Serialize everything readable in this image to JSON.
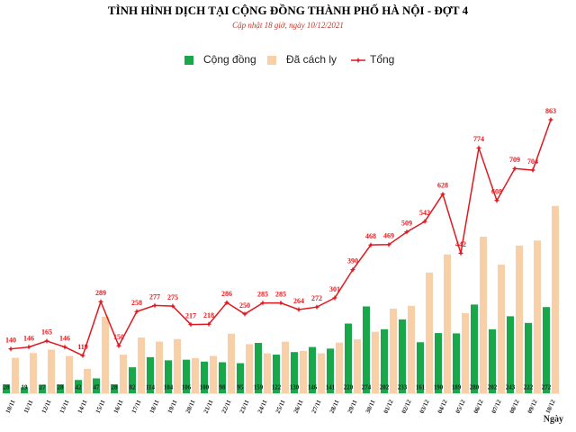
{
  "chart_data": {
    "type": "bar",
    "title": "TÌNH HÌNH DỊCH TẠI CỘNG ĐỒNG THÀNH PHỐ HÀ NỘI - ĐỢT 4",
    "subtitle": "Cập nhật 18 giờ, ngày 10/12/2021",
    "xlabel": "Ngày",
    "categories": [
      "10/11",
      "11/11",
      "12/11",
      "13/11",
      "14/11",
      "15/11",
      "16/11",
      "17/11",
      "18/11",
      "19/11",
      "20/11",
      "21/11",
      "22/11",
      "23/11",
      "24/11",
      "25/11",
      "26/11",
      "27/11",
      "28/11",
      "29/11",
      "30/11",
      "01/12",
      "02/12",
      "03/12",
      "04/12",
      "05/12",
      "06/12",
      "07/12",
      "08/12",
      "09/12",
      "10/12"
    ],
    "ylim": [
      0,
      900
    ],
    "series": [
      {
        "name": "Cộng đồng",
        "type": "bar",
        "color": "#1aa64a",
        "values": [
          28,
          19,
          27,
          28,
          42,
          47,
          28,
          82,
          114,
          104,
          106,
          100,
          98,
          95,
          159,
          122,
          130,
          146,
          141,
          220,
          274,
          202,
          233,
          161,
          190,
          189,
          280,
          202,
          243,
          222,
          272
        ]
      },
      {
        "name": "Đã cách ly",
        "type": "bar",
        "color": "#f9cfa8",
        "values": [
          112,
          127,
          138,
          118,
          77,
          242,
          122,
          176,
          163,
          171,
          111,
          118,
          188,
          155,
          126,
          163,
          134,
          126,
          160,
          170,
          194,
          267,
          276,
          381,
          438,
          253,
          494,
          406,
          466,
          482,
          591
        ]
      },
      {
        "name": "Tổng",
        "type": "line",
        "color": "#e0191f",
        "values": [
          140,
          146,
          165,
          146,
          119,
          289,
          150,
          258,
          277,
          275,
          217,
          218,
          286,
          250,
          285,
          285,
          264,
          272,
          301,
          390,
          468,
          469,
          509,
          542,
          628,
          442,
          774,
          608,
          709,
          704,
          863
        ]
      }
    ]
  }
}
